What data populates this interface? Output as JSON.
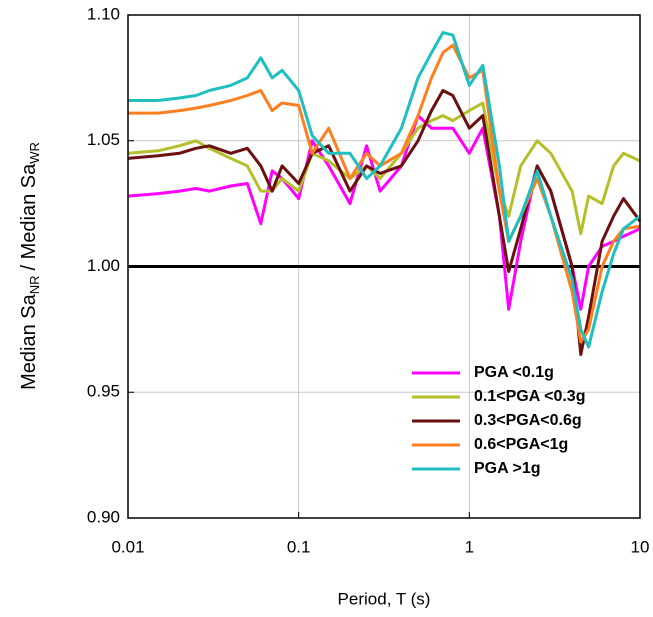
{
  "chart_data": {
    "type": "line",
    "x_label": "Period, T (s)",
    "y_label": {
      "parts": [
        "Median Sa",
        "/ Median Sa"
      ],
      "subscripts": [
        "NR",
        "WR"
      ]
    },
    "xscale": "log",
    "xlim": [
      0.01,
      10
    ],
    "xticks": [
      0.01,
      0.1,
      1,
      10
    ],
    "ylim": [
      0.9,
      1.1
    ],
    "yticks": [
      {
        "value": 0.9,
        "label": "0.90"
      },
      0.95,
      {
        "value": 1.0,
        "label": "1.00"
      },
      1.05,
      {
        "value": 1.1,
        "label": "1.10"
      }
    ],
    "grid": true,
    "reference_line": {
      "value": 1.0,
      "color": "#000000"
    },
    "legend": "lower right",
    "x": [
      0.01,
      0.015,
      0.02,
      0.025,
      0.03,
      0.04,
      0.05,
      0.06,
      0.07,
      0.08,
      0.1,
      0.12,
      0.15,
      0.2,
      0.25,
      0.3,
      0.4,
      0.5,
      0.6,
      0.7,
      0.8,
      1.0,
      1.2,
      1.5,
      1.7,
      2,
      2.5,
      3,
      4,
      4.5,
      5,
      6,
      7,
      8,
      10
    ],
    "series": [
      {
        "name": "PGA <0.1g",
        "color": "#ff00ff",
        "values": [
          1.028,
          1.029,
          1.03,
          1.031,
          1.03,
          1.032,
          1.033,
          1.017,
          1.038,
          1.035,
          1.027,
          1.05,
          1.04,
          1.025,
          1.048,
          1.03,
          1.04,
          1.06,
          1.055,
          1.055,
          1.055,
          1.045,
          1.055,
          1.02,
          0.983,
          1.01,
          1.04,
          1.03,
          1.0,
          0.983,
          1.0,
          1.008,
          1.01,
          1.012,
          1.015
        ]
      },
      {
        "name": "0.1<PGA <0.3g",
        "color": "#b5bf2a",
        "values": [
          1.045,
          1.046,
          1.048,
          1.05,
          1.047,
          1.043,
          1.04,
          1.03,
          1.03,
          1.035,
          1.03,
          1.045,
          1.042,
          1.035,
          1.04,
          1.035,
          1.045,
          1.055,
          1.058,
          1.06,
          1.058,
          1.062,
          1.065,
          1.03,
          1.02,
          1.04,
          1.05,
          1.045,
          1.03,
          1.013,
          1.028,
          1.025,
          1.04,
          1.045,
          1.042
        ]
      },
      {
        "name": "0.3<PGA<0.6g",
        "color": "#6b0f0f",
        "values": [
          1.043,
          1.044,
          1.045,
          1.047,
          1.048,
          1.045,
          1.047,
          1.04,
          1.03,
          1.04,
          1.033,
          1.045,
          1.048,
          1.03,
          1.04,
          1.037,
          1.04,
          1.05,
          1.062,
          1.07,
          1.068,
          1.055,
          1.06,
          1.02,
          0.998,
          1.015,
          1.04,
          1.03,
          1.0,
          0.965,
          0.98,
          1.01,
          1.02,
          1.027,
          1.018
        ]
      },
      {
        "name": "0.6<PGA<1g",
        "color": "#ff7f20",
        "values": [
          1.061,
          1.061,
          1.062,
          1.063,
          1.064,
          1.066,
          1.068,
          1.07,
          1.062,
          1.065,
          1.064,
          1.045,
          1.055,
          1.035,
          1.045,
          1.04,
          1.045,
          1.06,
          1.075,
          1.085,
          1.088,
          1.075,
          1.078,
          1.03,
          1.01,
          1.02,
          1.035,
          1.02,
          0.99,
          0.97,
          0.975,
          1.0,
          1.01,
          1.015,
          1.016
        ]
      },
      {
        "name": "PGA >1g",
        "color": "#1fbfbf",
        "values": [
          1.066,
          1.066,
          1.067,
          1.068,
          1.07,
          1.072,
          1.075,
          1.083,
          1.075,
          1.078,
          1.07,
          1.052,
          1.045,
          1.045,
          1.035,
          1.04,
          1.055,
          1.075,
          1.085,
          1.093,
          1.092,
          1.072,
          1.08,
          1.04,
          1.01,
          1.02,
          1.038,
          1.02,
          0.995,
          0.975,
          0.968,
          0.99,
          1.005,
          1.015,
          1.02
        ]
      }
    ]
  }
}
